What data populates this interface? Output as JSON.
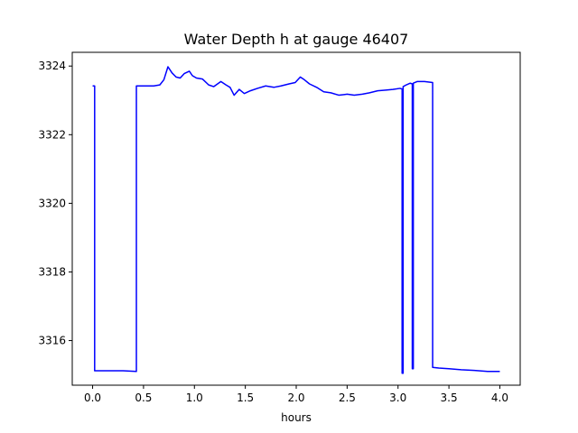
{
  "chart_data": {
    "type": "line",
    "title": "Water Depth h at gauge 46407",
    "xlabel": "hours",
    "ylabel": "",
    "xlim": [
      -0.2,
      4.2
    ],
    "ylim": [
      3314.7,
      3324.4
    ],
    "xticks": [
      0.0,
      0.5,
      1.0,
      1.5,
      2.0,
      2.5,
      3.0,
      3.5,
      4.0
    ],
    "xtick_labels": [
      "0.0",
      "0.5",
      "1.0",
      "1.5",
      "2.0",
      "2.5",
      "3.0",
      "3.5",
      "4.0"
    ],
    "yticks": [
      3316,
      3318,
      3320,
      3322,
      3324
    ],
    "ytick_labels": [
      "3316",
      "3318",
      "3320",
      "3322",
      "3324"
    ],
    "grid": false,
    "series": [
      {
        "color": "#0000ff",
        "x": [
          0.0,
          0.02,
          0.02,
          0.1,
          0.2,
          0.3,
          0.43,
          0.43,
          0.5,
          0.6,
          0.66,
          0.7,
          0.74,
          0.78,
          0.82,
          0.86,
          0.9,
          0.95,
          0.98,
          1.02,
          1.08,
          1.14,
          1.19,
          1.26,
          1.31,
          1.35,
          1.39,
          1.44,
          1.49,
          1.55,
          1.62,
          1.7,
          1.78,
          1.85,
          1.93,
          1.99,
          2.04,
          2.08,
          2.13,
          2.2,
          2.27,
          2.34,
          2.42,
          2.5,
          2.57,
          2.65,
          2.72,
          2.8,
          2.88,
          2.95,
          3.02,
          3.04,
          3.04,
          3.05,
          3.05,
          3.08,
          3.12,
          3.14,
          3.14,
          3.15,
          3.15,
          3.19,
          3.26,
          3.34,
          3.34,
          3.4,
          3.5,
          3.62,
          3.75,
          3.88,
          4.0
        ],
        "y": [
          3323.42,
          3323.42,
          3315.12,
          3315.12,
          3315.12,
          3315.12,
          3315.1,
          3323.42,
          3323.42,
          3323.42,
          3323.45,
          3323.6,
          3323.98,
          3323.8,
          3323.68,
          3323.65,
          3323.78,
          3323.85,
          3323.72,
          3323.65,
          3323.62,
          3323.45,
          3323.4,
          3323.55,
          3323.45,
          3323.38,
          3323.15,
          3323.32,
          3323.2,
          3323.28,
          3323.35,
          3323.42,
          3323.38,
          3323.42,
          3323.48,
          3323.52,
          3323.68,
          3323.6,
          3323.48,
          3323.38,
          3323.25,
          3323.22,
          3323.15,
          3323.18,
          3323.15,
          3323.18,
          3323.22,
          3323.28,
          3323.3,
          3323.32,
          3323.35,
          3323.33,
          3315.05,
          3315.05,
          3323.4,
          3323.45,
          3323.5,
          3323.48,
          3315.18,
          3315.18,
          3323.5,
          3323.55,
          3323.55,
          3323.52,
          3315.22,
          3315.2,
          3315.18,
          3315.15,
          3315.13,
          3315.1,
          3315.1
        ]
      }
    ]
  }
}
